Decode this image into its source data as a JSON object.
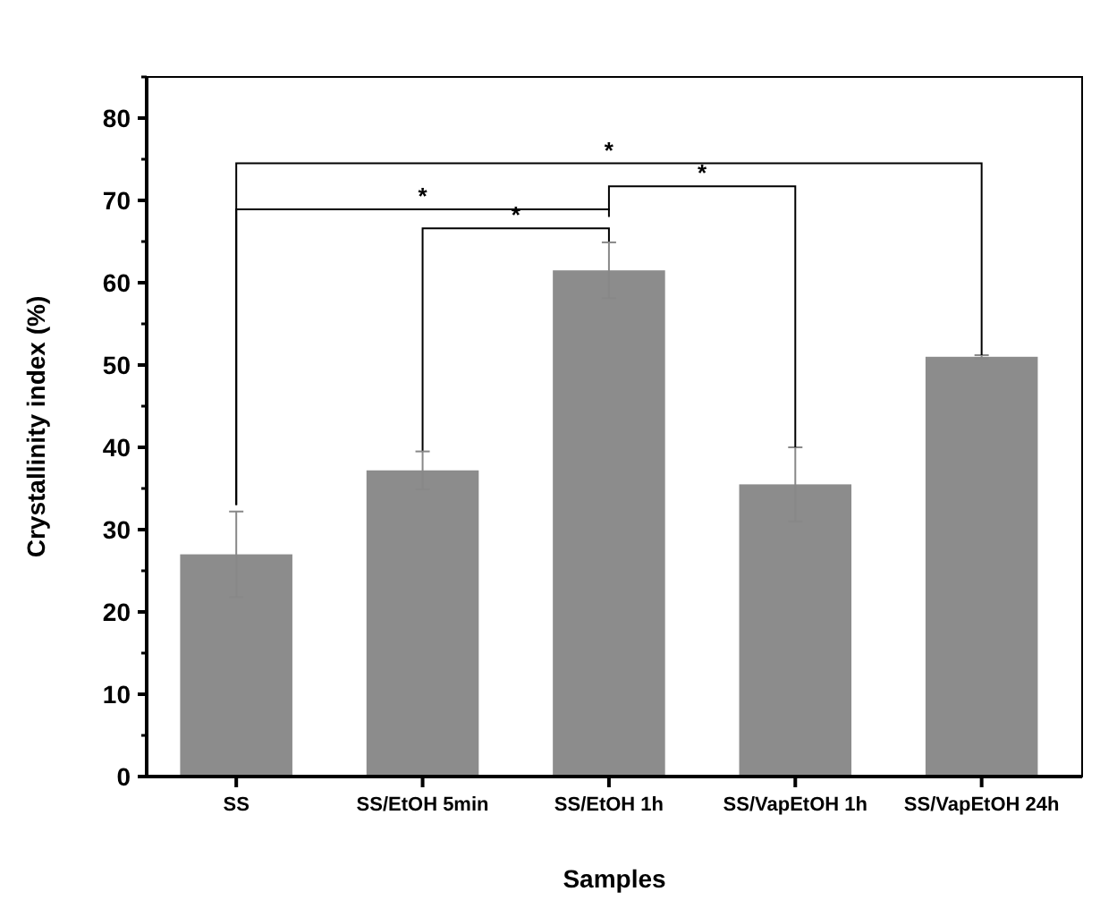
{
  "chart_data": {
    "type": "bar",
    "xlabel": "Samples",
    "ylabel": "Crystallinity index (%)",
    "categories": [
      "SS",
      "SS/EtOH 5min",
      "SS/EtOH 1h",
      "SS/VapEtOH 1h",
      "SS/VapEtOH 24h"
    ],
    "values": [
      27.0,
      37.2,
      61.5,
      35.5,
      51.0
    ],
    "errors": [
      5.2,
      2.3,
      3.4,
      4.5,
      0.2
    ],
    "color": "#8c8c8c",
    "ylim": [
      0,
      85
    ],
    "yticks": [
      0,
      10,
      20,
      30,
      40,
      50,
      60,
      70,
      80
    ],
    "annotations": [
      "*",
      "*",
      "*",
      "*"
    ]
  }
}
